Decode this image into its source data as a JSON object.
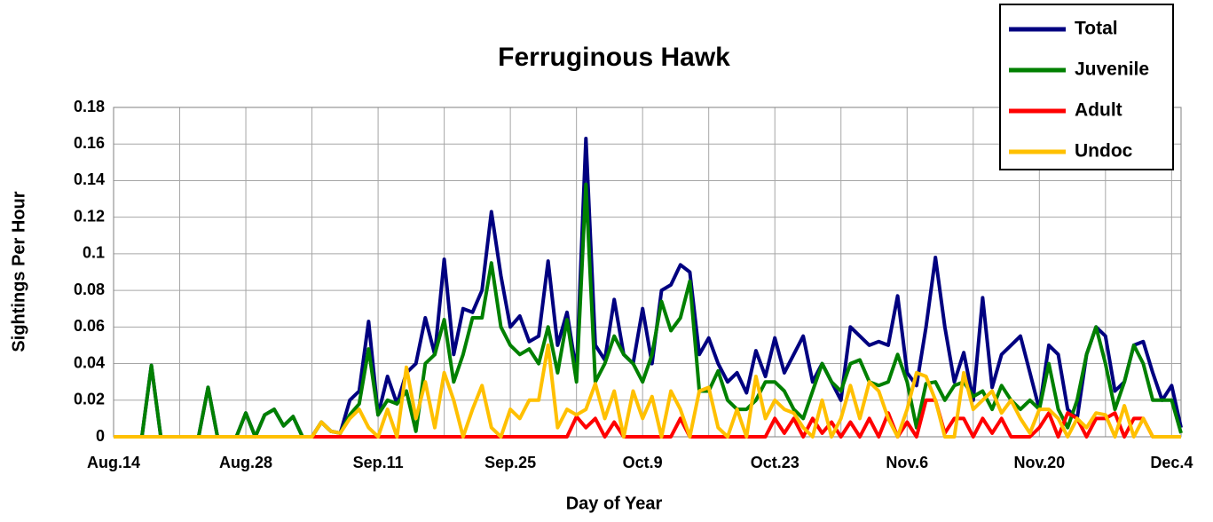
{
  "chart_data": {
    "type": "line",
    "title": "Ferruginous Hawk",
    "x_label": "Day of Year",
    "y_label": "Sightings Per Hour",
    "x": [
      0,
      1,
      2,
      3,
      4,
      5,
      6,
      7,
      8,
      9,
      10,
      11,
      12,
      13,
      14,
      15,
      16,
      17,
      18,
      19,
      20,
      21,
      22,
      23,
      24,
      25,
      26,
      27,
      28,
      29,
      30,
      31,
      32,
      33,
      34,
      35,
      36,
      37,
      38,
      39,
      40,
      41,
      42,
      43,
      44,
      45,
      46,
      47,
      48,
      49,
      50,
      51,
      52,
      53,
      54,
      55,
      56,
      57,
      58,
      59,
      60,
      61,
      62,
      63,
      64,
      65,
      66,
      67,
      68,
      69,
      70,
      71,
      72,
      73,
      74,
      75,
      76,
      77,
      78,
      79,
      80,
      81,
      82,
      83,
      84,
      85,
      86,
      87,
      88,
      89,
      90,
      91,
      92,
      93,
      94,
      95,
      96,
      97,
      98,
      99,
      100,
      101,
      102,
      103,
      104,
      105,
      106,
      107,
      108,
      109,
      110,
      111,
      112,
      113
    ],
    "series": [
      {
        "name": "Total",
        "color": "#000080",
        "values": [
          0,
          0,
          0,
          0,
          0.039,
          0,
          0,
          0,
          0,
          0,
          0.027,
          0,
          0,
          0,
          0.013,
          0,
          0.012,
          0.015,
          0.006,
          0.011,
          0,
          0,
          0.008,
          0.003,
          0.002,
          0.02,
          0.025,
          0.063,
          0.012,
          0.033,
          0.018,
          0.035,
          0.04,
          0.065,
          0.045,
          0.097,
          0.045,
          0.07,
          0.068,
          0.08,
          0.123,
          0.088,
          0.06,
          0.066,
          0.052,
          0.055,
          0.096,
          0.05,
          0.068,
          0.035,
          0.163,
          0.05,
          0.042,
          0.075,
          0.045,
          0.04,
          0.07,
          0.04,
          0.08,
          0.083,
          0.094,
          0.09,
          0.045,
          0.054,
          0.04,
          0.03,
          0.035,
          0.024,
          0.047,
          0.033,
          0.054,
          0.035,
          0.045,
          0.055,
          0.03,
          0.04,
          0.03,
          0.02,
          0.06,
          0.055,
          0.05,
          0.052,
          0.05,
          0.077,
          0.035,
          0.028,
          0.06,
          0.098,
          0.06,
          0.03,
          0.046,
          0.02,
          0.076,
          0.027,
          0.045,
          0.05,
          0.055,
          0.035,
          0.015,
          0.05,
          0.045,
          0.015,
          0.01,
          0.045,
          0.06,
          0.055,
          0.025,
          0.03,
          0.05,
          0.052,
          0.035,
          0.02,
          0.028,
          0.005
        ]
      },
      {
        "name": "Juvenile",
        "color": "#008000",
        "values": [
          0,
          0,
          0,
          0,
          0.039,
          0,
          0,
          0,
          0,
          0,
          0.027,
          0,
          0,
          0,
          0.013,
          0,
          0.012,
          0.015,
          0.006,
          0.011,
          0,
          0,
          0.008,
          0.003,
          0.002,
          0.012,
          0.018,
          0.048,
          0.012,
          0.02,
          0.018,
          0.025,
          0.003,
          0.04,
          0.045,
          0.064,
          0.03,
          0.045,
          0.065,
          0.065,
          0.095,
          0.06,
          0.05,
          0.045,
          0.048,
          0.04,
          0.06,
          0.035,
          0.064,
          0.03,
          0.138,
          0.03,
          0.04,
          0.055,
          0.045,
          0.04,
          0.03,
          0.045,
          0.074,
          0.058,
          0.065,
          0.085,
          0.025,
          0.025,
          0.036,
          0.02,
          0.015,
          0.015,
          0.02,
          0.03,
          0.03,
          0.025,
          0.015,
          0.01,
          0.025,
          0.04,
          0.03,
          0.025,
          0.04,
          0.042,
          0.03,
          0.028,
          0.03,
          0.045,
          0.03,
          0.005,
          0.029,
          0.03,
          0.02,
          0.028,
          0.03,
          0.022,
          0.025,
          0.015,
          0.028,
          0.02,
          0.015,
          0.02,
          0.015,
          0.04,
          0.015,
          0.005,
          0.02,
          0.045,
          0.06,
          0.04,
          0.015,
          0.03,
          0.05,
          0.04,
          0.02,
          0.02,
          0.02,
          0.002
        ]
      },
      {
        "name": "Adult",
        "color": "#ff0000",
        "values": [
          0,
          0,
          0,
          0,
          0,
          0,
          0,
          0,
          0,
          0,
          0,
          0,
          0,
          0,
          0,
          0,
          0,
          0,
          0,
          0,
          0,
          0,
          0,
          0,
          0,
          0,
          0,
          0,
          0,
          0,
          0,
          0,
          0,
          0,
          0,
          0,
          0,
          0,
          0,
          0,
          0,
          0,
          0,
          0,
          0,
          0,
          0,
          0,
          0,
          0.011,
          0.005,
          0.01,
          0,
          0.008,
          0,
          0,
          0,
          0,
          0,
          0,
          0.01,
          0,
          0,
          0,
          0,
          0,
          0,
          0,
          0,
          0,
          0.01,
          0.002,
          0.01,
          0,
          0.01,
          0.002,
          0.008,
          0,
          0.008,
          0,
          0.01,
          0,
          0.013,
          0,
          0.008,
          0,
          0.02,
          0.02,
          0.002,
          0.01,
          0.01,
          0,
          0.01,
          0.002,
          0.01,
          0,
          0,
          0,
          0.005,
          0.013,
          0,
          0.013,
          0.01,
          0,
          0.01,
          0.01,
          0.013,
          0,
          0.01,
          0.01,
          0,
          0,
          0,
          0
        ]
      },
      {
        "name": "Undoc",
        "color": "#ffc000",
        "values": [
          0,
          0,
          0,
          0,
          0,
          0,
          0,
          0,
          0,
          0,
          0,
          0,
          0,
          0,
          0,
          0,
          0,
          0,
          0,
          0,
          0,
          0,
          0.008,
          0.003,
          0.002,
          0.01,
          0.015,
          0.005,
          0,
          0.015,
          0,
          0.038,
          0.01,
          0.03,
          0.005,
          0.035,
          0.02,
          0,
          0.015,
          0.028,
          0.005,
          0,
          0.015,
          0.01,
          0.02,
          0.02,
          0.05,
          0.005,
          0.015,
          0.012,
          0.015,
          0.029,
          0.01,
          0.025,
          0,
          0.025,
          0.01,
          0.022,
          0,
          0.025,
          0.015,
          0,
          0.025,
          0.027,
          0.005,
          0,
          0.015,
          0,
          0.033,
          0.01,
          0.02,
          0.015,
          0.013,
          0.005,
          0,
          0.02,
          0,
          0.01,
          0.028,
          0.01,
          0.03,
          0.025,
          0.01,
          0,
          0.015,
          0.035,
          0.033,
          0.02,
          0,
          0,
          0.035,
          0.015,
          0.02,
          0.025,
          0.013,
          0.02,
          0.01,
          0.002,
          0.015,
          0.015,
          0.01,
          0,
          0.01,
          0.005,
          0.013,
          0.012,
          0,
          0.017,
          0,
          0.01,
          0,
          0,
          0,
          0
        ]
      }
    ],
    "xlim": [
      0,
      113
    ],
    "xticks": [
      {
        "value": 0,
        "label": "Aug.14"
      },
      {
        "value": 14,
        "label": "Aug.28"
      },
      {
        "value": 28,
        "label": "Sep.11"
      },
      {
        "value": 42,
        "label": "Sep.25"
      },
      {
        "value": 56,
        "label": "Oct.9"
      },
      {
        "value": 70,
        "label": "Oct.23"
      },
      {
        "value": 84,
        "label": "Nov.6"
      },
      {
        "value": 98,
        "label": "Nov.20"
      },
      {
        "value": 112,
        "label": "Dec.4"
      }
    ],
    "x_minor_ticks": [
      7,
      21,
      35,
      49,
      63,
      77,
      91,
      105
    ],
    "ylim": [
      0,
      0.18
    ],
    "yticks": [
      0,
      0.02,
      0.04,
      0.06,
      0.08,
      0.1,
      0.12,
      0.14,
      0.16,
      0.18
    ],
    "grid": true,
    "legend": "upper right"
  }
}
